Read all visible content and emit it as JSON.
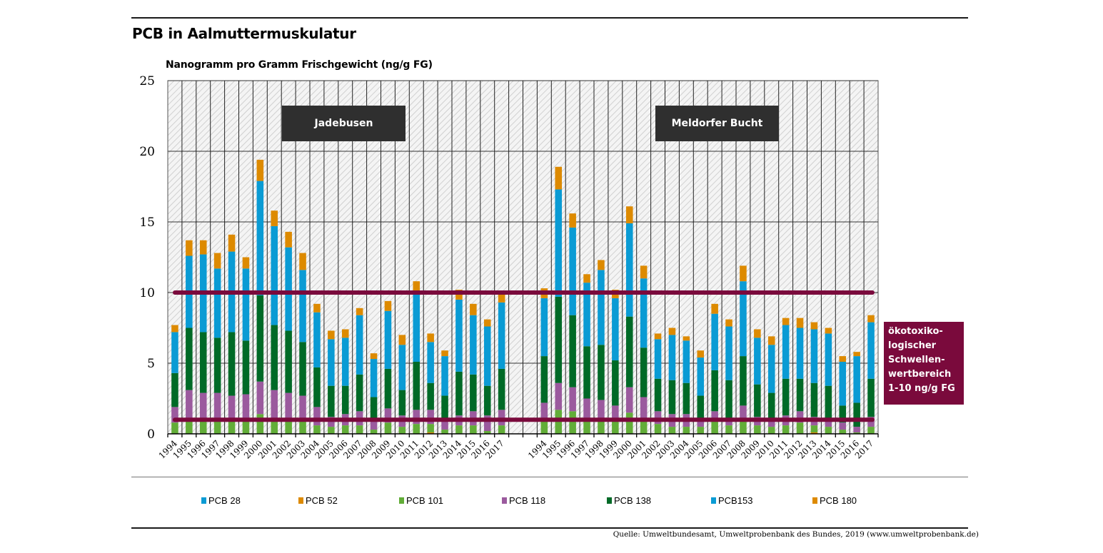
{
  "title": "PCB in Aalmuttermuskulatur",
  "unit_label": "Nanogramm pro Gramm Frischgewicht (ng/g FG)",
  "source": "Quelle: Umweltbundesamt, Umweltprobenbank des Bundes, 2019 (www.umweltprobenbank.de)",
  "regions": [
    {
      "label": "Jadebusen"
    },
    {
      "label": "Meldorfer Bucht"
    }
  ],
  "threshold_note": "ökotoxiko-\nlogischer\nSchwellen-\nwertbereich\n1-10 ng/g FG",
  "colors": {
    "threshold": "#7a0a3c",
    "region_box": "#2f2f2f"
  },
  "legend": [
    {
      "label": "PCB 28",
      "color": "#0a9bd4"
    },
    {
      "label": "PCB 52",
      "color": "#dd8a00"
    },
    {
      "label": "PCB 101",
      "color": "#62ad38"
    },
    {
      "label": "PCB 118",
      "color": "#9b5a9e"
    },
    {
      "label": "PCB 138",
      "color": "#006a27"
    },
    {
      "label": "PCB153",
      "color": "#0a9bd4"
    },
    {
      "label": "PCB 180",
      "color": "#dd8a00"
    }
  ],
  "chart_data": {
    "type": "bar",
    "stacked": true,
    "title": "PCB in Aalmuttermuskulatur",
    "xlabel": "",
    "ylabel": "Nanogramm pro Gramm Frischgewicht (ng/g FG)",
    "ylim": [
      0,
      25
    ],
    "yticks": [
      0,
      5,
      10,
      15,
      20,
      25
    ],
    "grid": true,
    "legend_position": "bottom",
    "threshold_range": [
      1,
      10
    ],
    "groups": [
      {
        "name": "Jadebusen",
        "categories": [
          "1994",
          "1995",
          "1996",
          "1997",
          "1998",
          "1999",
          "2000",
          "2001",
          "2002",
          "2003",
          "2004",
          "2005",
          "2006",
          "2007",
          "2008",
          "2009",
          "2010",
          "2011",
          "2012",
          "2013",
          "2014",
          "2015",
          "2016",
          "2017"
        ],
        "series": [
          {
            "name": "PCB 28",
            "values": [
              0,
              0,
              0,
              0,
              0,
              0,
              0,
              0,
              0,
              0,
              0,
              0,
              0,
              0,
              0,
              0,
              0,
              0,
              0,
              0,
              0,
              0,
              0,
              0
            ]
          },
          {
            "name": "PCB 52",
            "values": [
              0,
              0,
              0,
              0,
              0,
              0,
              0,
              0,
              0,
              0,
              0,
              0,
              0,
              0,
              0,
              0,
              0,
              0,
              0.1,
              0,
              0,
              0,
              0,
              0
            ]
          },
          {
            "name": "PCB 101",
            "values": [
              0.8,
              0.9,
              0.9,
              0.9,
              0.9,
              0.9,
              1.4,
              0.9,
              0.9,
              0.9,
              0.6,
              0.5,
              0.6,
              0.6,
              0.3,
              0.8,
              0.5,
              0.7,
              0.6,
              0.3,
              0.6,
              0.6,
              0.2,
              0.6
            ]
          },
          {
            "name": "PCB 118",
            "values": [
              1.1,
              2.2,
              2.0,
              2.0,
              1.8,
              1.9,
              2.3,
              2.2,
              2.0,
              1.8,
              1.3,
              0.7,
              0.8,
              1.0,
              0.7,
              1.0,
              0.8,
              1.0,
              1.0,
              0.8,
              0.7,
              1.0,
              1.1,
              1.1
            ]
          },
          {
            "name": "PCB 138",
            "values": [
              2.4,
              4.4,
              4.3,
              3.9,
              4.5,
              3.8,
              6.1,
              4.6,
              4.4,
              3.8,
              2.8,
              2.2,
              2.0,
              2.6,
              1.6,
              2.8,
              1.8,
              3.4,
              1.9,
              1.6,
              3.1,
              2.6,
              2.1,
              2.9
            ]
          },
          {
            "name": "PCB153",
            "values": [
              2.9,
              5.1,
              5.5,
              4.9,
              5.7,
              5.1,
              8.1,
              7.0,
              5.9,
              5.1,
              3.9,
              3.3,
              3.4,
              4.2,
              2.7,
              4.1,
              3.2,
              4.8,
              2.9,
              2.8,
              5.1,
              4.2,
              4.2,
              4.7
            ]
          },
          {
            "name": "PCB 180",
            "values": [
              0.5,
              1.1,
              1.0,
              1.1,
              1.2,
              0.8,
              1.5,
              1.1,
              1.1,
              1.2,
              0.6,
              0.6,
              0.6,
              0.5,
              0.4,
              0.7,
              0.7,
              0.9,
              0.6,
              0.4,
              0.7,
              0.8,
              0.5,
              0.7
            ]
          }
        ]
      },
      {
        "name": "Meldorfer Bucht",
        "categories": [
          "1994",
          "1995",
          "1996",
          "1997",
          "1998",
          "1999",
          "2000",
          "2001",
          "2002",
          "2003",
          "2004",
          "2005",
          "2006",
          "2007",
          "2008",
          "2009",
          "2010",
          "2011",
          "2012",
          "2013",
          "2014",
          "2015",
          "2016",
          "2017"
        ],
        "series": [
          {
            "name": "PCB 28",
            "values": [
              0,
              0,
              0,
              0,
              0,
              0,
              0,
              0,
              0,
              0,
              0,
              0,
              0,
              0,
              0,
              0,
              0,
              0,
              0,
              0,
              0,
              0,
              0,
              0
            ]
          },
          {
            "name": "PCB 52",
            "values": [
              0,
              0,
              0,
              0,
              0,
              0,
              0,
              0,
              0,
              0,
              0,
              0,
              0,
              0,
              0,
              0,
              0,
              0,
              0,
              0.1,
              0,
              0,
              0,
              0
            ]
          },
          {
            "name": "PCB 101",
            "values": [
              0.9,
              1.7,
              1.6,
              0.9,
              0.9,
              0.9,
              1.5,
              0.9,
              0.7,
              0.5,
              0.5,
              0.5,
              0.9,
              0.6,
              0.9,
              0.6,
              0.5,
              0.6,
              0.8,
              0.5,
              0.5,
              0.3,
              0.1,
              0.5
            ]
          },
          {
            "name": "PCB 118",
            "values": [
              1.3,
              1.9,
              1.7,
              1.6,
              1.5,
              1.1,
              1.8,
              1.7,
              0.9,
              0.9,
              0.9,
              0.6,
              0.7,
              0.4,
              1.1,
              0.6,
              0.5,
              0.7,
              0.8,
              0.6,
              0.5,
              0.5,
              0.4,
              0.7
            ]
          },
          {
            "name": "PCB 138",
            "values": [
              3.3,
              6.1,
              5.1,
              3.7,
              3.9,
              3.2,
              5.0,
              3.5,
              2.3,
              2.4,
              2.2,
              1.6,
              2.9,
              2.8,
              3.5,
              2.3,
              1.9,
              2.6,
              2.3,
              2.4,
              2.4,
              1.2,
              1.7,
              2.7
            ]
          },
          {
            "name": "PCB153",
            "values": [
              4.1,
              7.6,
              6.2,
              4.5,
              5.3,
              4.4,
              6.6,
              4.9,
              2.8,
              3.2,
              3.0,
              2.7,
              4.0,
              3.8,
              5.3,
              3.3,
              3.4,
              3.8,
              3.6,
              3.8,
              3.7,
              3.1,
              3.3,
              4.0
            ]
          },
          {
            "name": "PCB 180",
            "values": [
              0.7,
              1.6,
              1.0,
              0.6,
              0.7,
              0.6,
              1.2,
              0.9,
              0.4,
              0.5,
              0.3,
              0.5,
              0.7,
              0.5,
              1.1,
              0.6,
              0.6,
              0.5,
              0.7,
              0.5,
              0.4,
              0.4,
              0.3,
              0.5
            ]
          }
        ]
      }
    ]
  }
}
